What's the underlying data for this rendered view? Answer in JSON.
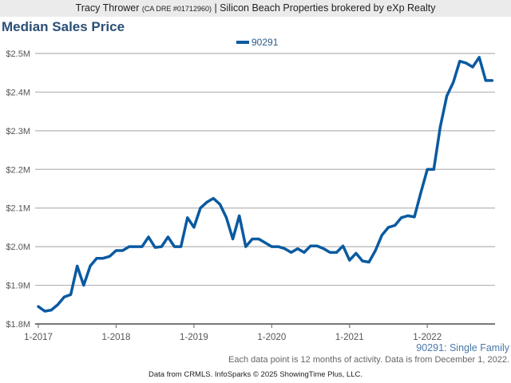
{
  "header": {
    "agent": "Tracy Thrower",
    "license": "(CA DRE #01712960)",
    "brokerage": "| Silicon Beach Properties brokered by eXp Realty"
  },
  "footer": {
    "series_label": "90291: Single Family",
    "note": "Each data point is 12 months of activity. Data is from December 1, 2022.",
    "source": "Data from CRMLS. InfoSparks © 2025 ShowingTime Plus, LLC."
  },
  "chart_data": {
    "type": "line",
    "title": "Median Sales Price",
    "xlabel": "",
    "ylabel": "",
    "legend_position": "top-center",
    "grid": true,
    "ylim": [
      1.8,
      2.5
    ],
    "y_ticks": [
      1.8,
      1.9,
      2.0,
      2.1,
      2.2,
      2.3,
      2.4,
      2.5
    ],
    "y_tick_labels": [
      "$1.8M",
      "$1.9M",
      "$2.0M",
      "$2.1M",
      "$2.2M",
      "$2.3M",
      "$2.4M",
      "$2.5M"
    ],
    "x_tick_labels": [
      "1-2017",
      "1-2018",
      "1-2019",
      "1-2020",
      "1-2021",
      "1-2022"
    ],
    "x_tick_index": [
      0,
      12,
      24,
      36,
      48,
      60
    ],
    "x_start": "1-2017",
    "x_total_months": 71.5,
    "series": [
      {
        "name": "90291",
        "color": "#0a5aa0",
        "values": [
          1.845,
          1.833,
          1.836,
          1.85,
          1.87,
          1.876,
          1.95,
          1.9,
          1.95,
          1.97,
          1.97,
          1.975,
          1.99,
          1.99,
          2.0,
          2.0,
          2.0,
          2.025,
          1.998,
          2.0,
          2.025,
          2.0,
          2.0,
          2.075,
          2.05,
          2.1,
          2.115,
          2.125,
          2.11,
          2.075,
          2.02,
          2.08,
          2.0,
          2.02,
          2.02,
          2.01,
          2.0,
          2.0,
          1.995,
          1.985,
          1.995,
          1.985,
          2.002,
          2.002,
          1.995,
          1.985,
          1.985,
          2.002,
          1.965,
          1.983,
          1.963,
          1.96,
          1.99,
          2.03,
          2.05,
          2.055,
          2.075,
          2.08,
          2.077,
          2.14,
          2.2,
          2.2,
          2.31,
          2.39,
          2.425,
          2.48,
          2.475,
          2.465,
          2.49,
          2.43,
          2.43
        ]
      }
    ]
  }
}
